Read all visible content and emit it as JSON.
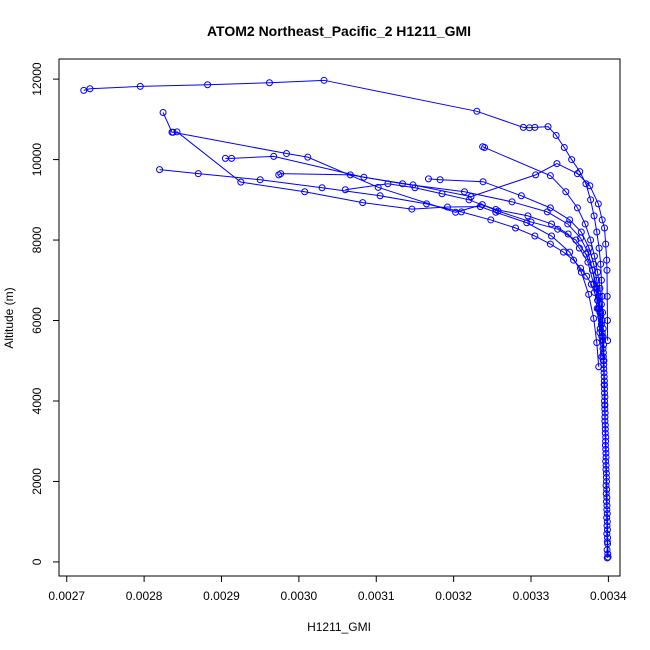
{
  "chart_data": {
    "type": "scatter",
    "title": "ATOM2 Northeast_Pacific_2 H1211_GMI",
    "xlabel": "H1211_GMI",
    "ylabel": "Altitude (m)",
    "xlim": [
      0.00269,
      0.003415
    ],
    "ylim": [
      -350,
      12500
    ],
    "x_ticks": [
      0.0027,
      0.0028,
      0.0029,
      0.003,
      0.0031,
      0.0032,
      0.0033,
      0.0034
    ],
    "x_tick_labels": [
      "0.0027",
      "0.0028",
      "0.0029",
      "0.0030",
      "0.0031",
      "0.0032",
      "0.0033",
      "0.0034"
    ],
    "y_ticks": [
      0,
      2000,
      4000,
      6000,
      8000,
      10000,
      12000
    ],
    "y_tick_labels": [
      "0",
      "2000",
      "4000",
      "6000",
      "8000",
      "10000",
      "12000"
    ],
    "color": "#0000ff",
    "marker": "open-circle",
    "grid": false,
    "series": [
      {
        "points": [
          [
            0.0033985,
            100
          ],
          [
            0.0033983,
            300
          ],
          [
            0.0033986,
            500
          ],
          [
            0.003398,
            700
          ],
          [
            0.0033982,
            900
          ],
          [
            0.0033978,
            1100
          ],
          [
            0.003398,
            1300
          ],
          [
            0.0033976,
            1500
          ],
          [
            0.0033972,
            1700
          ],
          [
            0.003397,
            1900
          ],
          [
            0.0033974,
            2100
          ],
          [
            0.0033968,
            2300
          ],
          [
            0.0033965,
            2500
          ],
          [
            0.0033968,
            2700
          ],
          [
            0.0033962,
            2900
          ],
          [
            0.0033966,
            3100
          ],
          [
            0.003396,
            3300
          ],
          [
            0.0033955,
            3500
          ],
          [
            0.0033958,
            3700
          ],
          [
            0.0033952,
            3900
          ],
          [
            0.0033955,
            4100
          ],
          [
            0.003395,
            4300
          ],
          [
            0.0033948,
            4500
          ],
          [
            0.0033944,
            4700
          ],
          [
            0.003394,
            4900
          ],
          [
            0.0033935,
            5100
          ],
          [
            0.003393,
            5300
          ],
          [
            0.0033925,
            5500
          ],
          [
            0.003392,
            5700
          ],
          [
            0.003391,
            5900
          ],
          [
            0.00339,
            6100
          ],
          [
            0.003388,
            6300
          ],
          [
            0.003386,
            6500
          ],
          [
            0.003382,
            6700
          ],
          [
            0.003378,
            6900
          ],
          [
            0.003372,
            7100
          ],
          [
            0.003364,
            7300
          ],
          [
            0.003355,
            7500
          ],
          [
            0.003342,
            7700
          ],
          [
            0.003325,
            7900
          ],
          [
            0.003305,
            8100
          ],
          [
            0.00328,
            8300
          ],
          [
            0.003248,
            8500
          ],
          [
            0.00321,
            8700
          ],
          [
            0.003165,
            8900
          ],
          [
            0.003105,
            9100
          ],
          [
            0.00303,
            9300
          ],
          [
            0.00295,
            9500
          ],
          [
            0.00287,
            9650
          ],
          [
            0.00282,
            9750
          ]
        ]
      },
      {
        "points": [
          [
            0.0033995,
            120
          ],
          [
            0.003399,
            450
          ],
          [
            0.0033988,
            800
          ],
          [
            0.0033985,
            1200
          ],
          [
            0.003398,
            1600
          ],
          [
            0.0033976,
            2000
          ],
          [
            0.003397,
            2400
          ],
          [
            0.0033966,
            2800
          ],
          [
            0.003396,
            3200
          ],
          [
            0.0033955,
            3600
          ],
          [
            0.003395,
            4000
          ],
          [
            0.0033945,
            4400
          ],
          [
            0.003394,
            4800
          ],
          [
            0.0033935,
            5200
          ],
          [
            0.003393,
            5600
          ],
          [
            0.003392,
            6000
          ],
          [
            0.003391,
            6400
          ],
          [
            0.003389,
            6800
          ],
          [
            0.003386,
            7200
          ],
          [
            0.003382,
            7600
          ],
          [
            0.003377,
            8000
          ],
          [
            0.00337,
            8400
          ],
          [
            0.00336,
            8800
          ],
          [
            0.003345,
            9200
          ],
          [
            0.003325,
            9600
          ],
          [
            0.0032375,
            10320
          ],
          [
            0.00324,
            10300
          ]
        ]
      },
      {
        "points": [
          [
            0.0033992,
            200
          ],
          [
            0.0033989,
            600
          ],
          [
            0.0033986,
            1000
          ],
          [
            0.0033982,
            1400
          ],
          [
            0.0033978,
            1800
          ],
          [
            0.0033974,
            2200
          ],
          [
            0.003397,
            2600
          ],
          [
            0.0033964,
            3000
          ],
          [
            0.003396,
            3400
          ],
          [
            0.0033954,
            3800
          ],
          [
            0.003395,
            4200
          ],
          [
            0.0033946,
            4600
          ],
          [
            0.0033942,
            5000
          ],
          [
            0.0033938,
            5400
          ],
          [
            0.0033932,
            5800
          ],
          [
            0.0033925,
            6200
          ],
          [
            0.003392,
            6600
          ],
          [
            0.003391,
            7000
          ],
          [
            0.00339,
            7400
          ],
          [
            0.003388,
            7800
          ],
          [
            0.003385,
            8200
          ],
          [
            0.0033815,
            8600
          ],
          [
            0.003377,
            9000
          ],
          [
            0.003371,
            9400
          ],
          [
            0.003363,
            9700
          ],
          [
            0.0033525,
            10000
          ],
          [
            0.003343,
            10300
          ],
          [
            0.0033325,
            10600
          ],
          [
            0.003322,
            10820
          ],
          [
            0.003305,
            10800
          ],
          [
            0.003298,
            10790
          ],
          [
            0.00329,
            10800
          ],
          [
            0.00323,
            11200
          ],
          [
            0.0030325,
            11970
          ],
          [
            0.002962,
            11910
          ],
          [
            0.002882,
            11860
          ],
          [
            0.002795,
            11820
          ],
          [
            0.00273,
            11760
          ],
          [
            0.002722,
            11720
          ]
        ]
      },
      {
        "points": [
          [
            0.00339,
            6200
          ],
          [
            0.003388,
            6600
          ],
          [
            0.003385,
            7000
          ],
          [
            0.003381,
            7400
          ],
          [
            0.003375,
            7800
          ],
          [
            0.003365,
            8200
          ],
          [
            0.00335,
            8500
          ],
          [
            0.003325,
            8800
          ],
          [
            0.0032875,
            9100
          ],
          [
            0.003238,
            9450
          ],
          [
            0.0031825,
            9500
          ],
          [
            0.0031675,
            9520
          ]
        ]
      },
      {
        "points": [
          [
            0.0033895,
            5800
          ],
          [
            0.003387,
            6300
          ],
          [
            0.003384,
            6800
          ],
          [
            0.0033795,
            7250
          ],
          [
            0.0033735,
            7700
          ],
          [
            0.003364,
            8050
          ],
          [
            0.0033475,
            8400
          ],
          [
            0.003321,
            8700
          ],
          [
            0.0032755,
            8950
          ],
          [
            0.003214,
            9200
          ],
          [
            0.003134,
            9400
          ],
          [
            0.0030665,
            9620
          ],
          [
            0.0029765,
            9650
          ],
          [
            0.002974,
            9620
          ]
        ]
      },
      {
        "points": [
          [
            0.003399,
            5500
          ],
          [
            0.0033988,
            6000
          ],
          [
            0.0033985,
            6600
          ],
          [
            0.0033982,
            7250
          ],
          [
            0.0033978,
            7500
          ],
          [
            0.0033965,
            7900
          ],
          [
            0.003395,
            8300
          ],
          [
            0.003392,
            8500
          ],
          [
            0.003387,
            8900
          ],
          [
            0.003376,
            9350
          ],
          [
            0.00336,
            9650
          ],
          [
            0.0033335,
            9900
          ],
          [
            0.003306,
            9620
          ],
          [
            0.0032225,
            9080
          ],
          [
            0.0031475,
            9370
          ],
          [
            0.003084,
            9560
          ],
          [
            0.0029675,
            10080
          ],
          [
            0.002913,
            10030
          ],
          [
            0.002905,
            10030
          ]
        ]
      },
      {
        "points": [
          [
            0.0033915,
            5100
          ],
          [
            0.003389,
            5700
          ],
          [
            0.0033855,
            6300
          ],
          [
            0.003381,
            6900
          ],
          [
            0.0033735,
            7450
          ],
          [
            0.0033625,
            7800
          ],
          [
            0.003348,
            8150
          ],
          [
            0.0033265,
            8400
          ],
          [
            0.003296,
            8600
          ],
          [
            0.0032545,
            8760
          ],
          [
            0.003237,
            8880
          ],
          [
            0.0032025,
            8690
          ],
          [
            0.0031025,
            9310
          ],
          [
            0.0030115,
            10060
          ],
          [
            0.002984,
            10150
          ],
          [
            0.0028375,
            10680
          ],
          [
            0.002836,
            10680
          ],
          [
            0.0028245,
            11170
          ]
        ]
      },
      {
        "points": [
          [
            0.0033875,
            4850
          ],
          [
            0.003385,
            5450
          ],
          [
            0.003381,
            6050
          ],
          [
            0.0033745,
            6650
          ],
          [
            0.003365,
            7200
          ],
          [
            0.00335,
            7700
          ],
          [
            0.0033265,
            8100
          ],
          [
            0.0032945,
            8430
          ],
          [
            0.0032545,
            8690
          ],
          [
            0.0032345,
            8830
          ],
          [
            0.003192,
            8820
          ],
          [
            0.003146,
            8770
          ],
          [
            0.0030825,
            8930
          ],
          [
            0.0030075,
            9200
          ],
          [
            0.002925,
            9440
          ],
          [
            0.0028425,
            10690
          ]
        ]
      },
      {
        "points": [
          [
            0.0033955,
            3900
          ],
          [
            0.003395,
            4400
          ],
          [
            0.0033935,
            5000
          ],
          [
            0.0033915,
            5600
          ],
          [
            0.003389,
            6200
          ],
          [
            0.0033855,
            6800
          ],
          [
            0.0033795,
            7250
          ],
          [
            0.003371,
            7650
          ],
          [
            0.003358,
            8000
          ],
          [
            0.0033345,
            8270
          ],
          [
            0.0033,
            8450
          ],
          [
            0.0032575,
            8720
          ],
          [
            0.00322,
            9000
          ],
          [
            0.003185,
            9150
          ],
          [
            0.00315,
            9300
          ],
          [
            0.003115,
            9400
          ],
          [
            0.00306,
            9250
          ]
        ]
      }
    ]
  }
}
